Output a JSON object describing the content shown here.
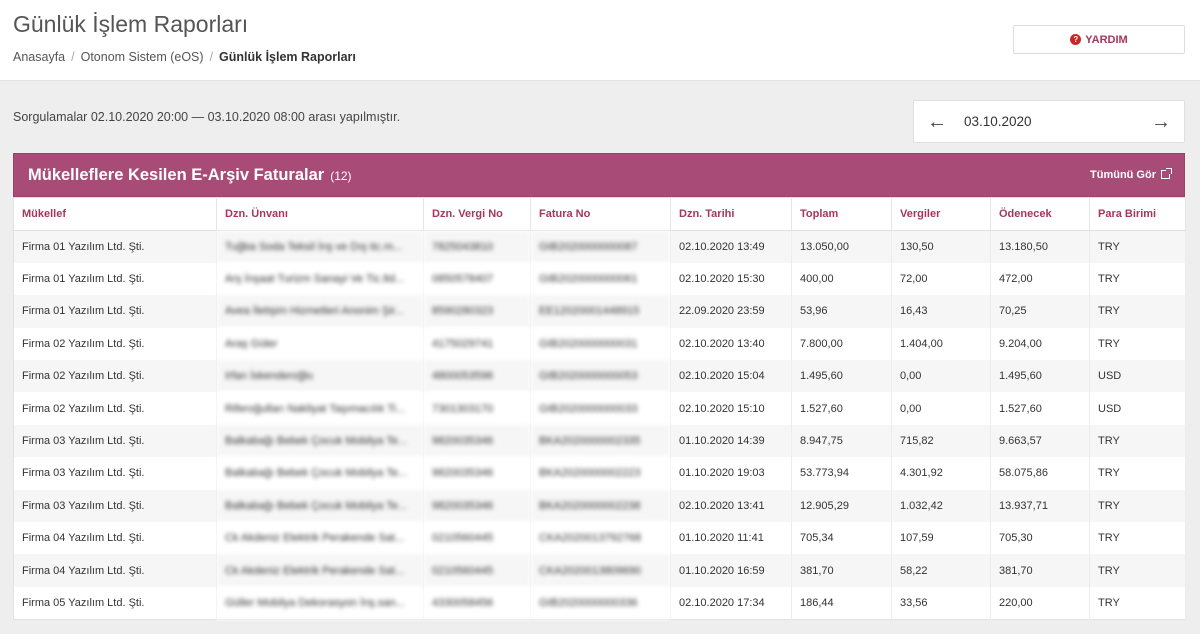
{
  "header": {
    "title": "Günlük İşlem Raporları",
    "breadcrumb": [
      "Anasayfa",
      "Otonom Sistem (eOS)",
      "Günlük İşlem Raporları"
    ],
    "help_label": "YARDIM"
  },
  "query_info": "Sorgulamalar 02.10.2020 20:00 — 03.10.2020 08:00 arası yapılmıştır.",
  "date_nav": {
    "date": "03.10.2020",
    "prev_icon": "arrow-left-icon",
    "next_icon": "arrow-right-icon"
  },
  "panel": {
    "title": "Mükelleflere Kesilen E-Arşiv Faturalar",
    "count": "(12)",
    "see_all_label": "Tümünü Gör",
    "columns": [
      "Mükellef",
      "Dzn. Ünvanı",
      "Dzn. Vergi No",
      "Fatura No",
      "Dzn. Tarihi",
      "Toplam",
      "Vergiler",
      "Ödenecek",
      "Para Birimi"
    ],
    "rows": [
      [
        "Firma 01 Yazılım Ltd. Şti.",
        "Tuğba Soda Teksil İnş ve Dış tic.m...",
        "7825043810",
        "GIB2020000000087",
        "02.10.2020 13:49",
        "13.050,00",
        "130,50",
        "13.180,50",
        "TRY"
      ],
      [
        "Firma 01 Yazılım Ltd. Şti.",
        "Arş İnşaat Turizm Sanayi Ve Tic.ltd...",
        "0850578407",
        "GIB2020000000061",
        "02.10.2020 15:30",
        "400,00",
        "72,00",
        "472,00",
        "TRY"
      ],
      [
        "Firma 01 Yazılım Ltd. Şti.",
        "Avea İletişim Hizmetleri Anonim Şir...",
        "8590280323",
        "EE12020001448915",
        "22.09.2020 23:59",
        "53,96",
        "16,43",
        "70,25",
        "TRY"
      ],
      [
        "Firma 02 Yazılım Ltd. Şti.",
        "Araş Güler",
        "4175029741",
        "GIB2020000000031",
        "02.10.2020 13:40",
        "7.800,00",
        "1.404,00",
        "9.204,00",
        "TRY"
      ],
      [
        "Firma 02 Yazılım Ltd. Şti.",
        "Irfan İskenderoğlu",
        "4800053596",
        "GIB2020000000053",
        "02.10.2020 15:04",
        "1.495,60",
        "0,00",
        "1.495,60",
        "USD"
      ],
      [
        "Firma 02 Yazılım Ltd. Şti.",
        "Riferoğulları Nakliyat Taşımacılık Ti...",
        "7301303170",
        "GIB2020000000033",
        "02.10.2020 15:10",
        "1.527,60",
        "0,00",
        "1.527,60",
        "USD"
      ],
      [
        "Firma 03 Yazılım Ltd. Şti.",
        "Balkabağı Bebek Çocuk Mobilya Te...",
        "9820035346",
        "BKA2020000002335",
        "01.10.2020 14:39",
        "8.947,75",
        "715,82",
        "9.663,57",
        "TRY"
      ],
      [
        "Firma 03 Yazılım Ltd. Şti.",
        "Balkabağı Bebek Çocuk Mobilya Te...",
        "9820035346",
        "BKA2020000002223",
        "01.10.2020 19:03",
        "53.773,94",
        "4.301,92",
        "58.075,86",
        "TRY"
      ],
      [
        "Firma 03 Yazılım Ltd. Şti.",
        "Balkabağı Bebek Çocuk Mobilya Te...",
        "9820035346",
        "BKA2020000002238",
        "02.10.2020 13:41",
        "12.905,29",
        "1.032,42",
        "13.937,71",
        "TRY"
      ],
      [
        "Firma 04 Yazılım Ltd. Şti.",
        "Ck Akdeniz Elektrik Perakende Sat...",
        "0210560445",
        "CKA2020013792768",
        "01.10.2020 11:41",
        "705,34",
        "107,59",
        "705,30",
        "TRY"
      ],
      [
        "Firma 04 Yazılım Ltd. Şti.",
        "Ck Akdeniz Elektrik Perakende Sat...",
        "0210560445",
        "CKA2020013809690",
        "01.10.2020 16:59",
        "381,70",
        "58,22",
        "381,70",
        "TRY"
      ],
      [
        "Firma 05 Yazılım Ltd. Şti.",
        "Güller Mobilya Dekorasyon İnş.san...",
        "4330058456",
        "GIB2020000000336",
        "02.10.2020 17:34",
        "186,44",
        "33,56",
        "220,00",
        "TRY"
      ]
    ]
  }
}
